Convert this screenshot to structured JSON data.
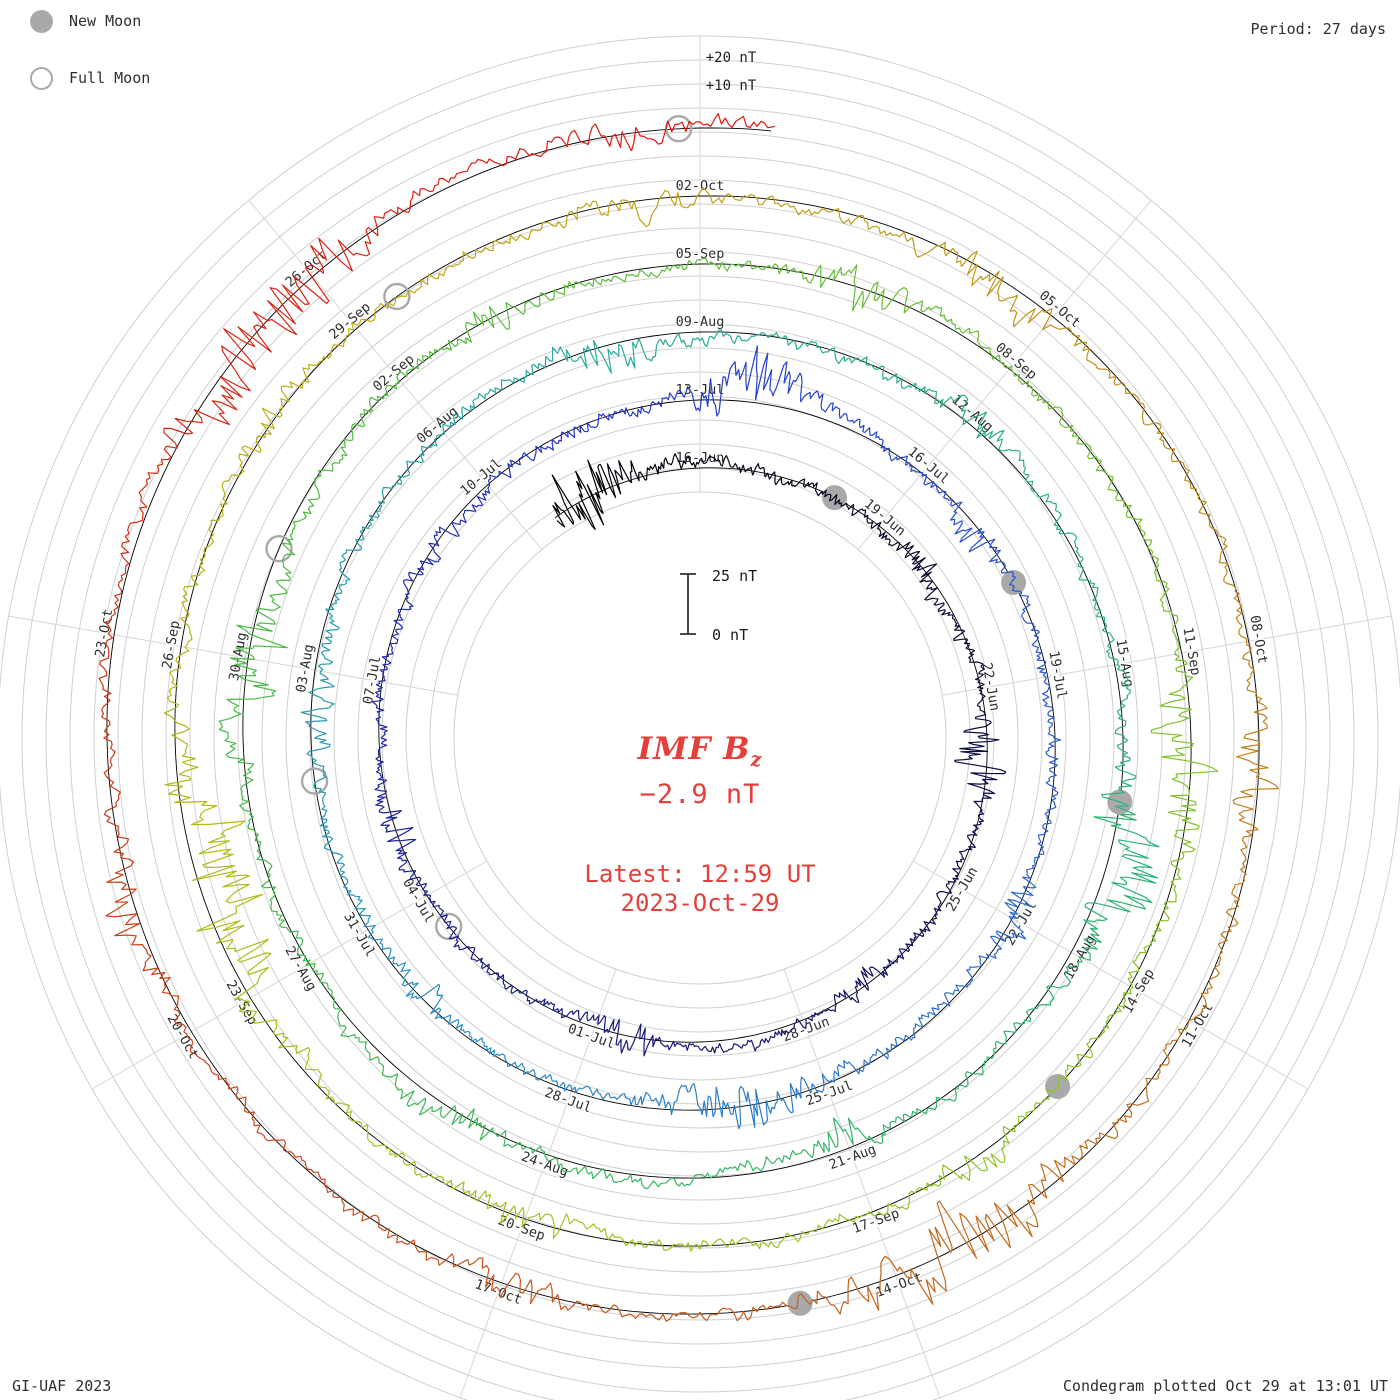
{
  "meta": {
    "credit": "GI-UAF 2023",
    "plotted_note": "Condegram plotted Oct 29 at 13:01 UT",
    "period_label": "Period: 27 days"
  },
  "legend": {
    "new_moon_label": "New Moon",
    "full_moon_label": "Full Moon"
  },
  "center": {
    "title_main": "IMF B",
    "title_sub": "z",
    "current_value": "−2.9 nT",
    "latest_line1": "Latest: 12:59 UT",
    "latest_line2": "2023-Oct-29"
  },
  "scale": {
    "outer_label_plus20": "+20 nT",
    "outer_label_plus10": "+10 nT",
    "bar_top_label": "25 nT",
    "bar_bottom_label": "0 nT"
  },
  "colors": {
    "background": "#ffffff",
    "grid": "#cfcfcf",
    "spoke": "#d6d6d6",
    "baseline": "#000000",
    "date_label": "#2e2e2e",
    "moon": "#a9a9a9",
    "accent_red": "#e2403a",
    "corner_text": "#2e2e2e",
    "trace_gradient": [
      [
        0.0,
        "#000000"
      ],
      [
        0.05,
        "#0a0a30"
      ],
      [
        0.12,
        "#17177a"
      ],
      [
        0.2,
        "#2433c8"
      ],
      [
        0.27,
        "#2f62d2"
      ],
      [
        0.33,
        "#2b8cc4"
      ],
      [
        0.4,
        "#26ab9b"
      ],
      [
        0.47,
        "#2eb376"
      ],
      [
        0.53,
        "#3eb754"
      ],
      [
        0.6,
        "#5cbc38"
      ],
      [
        0.66,
        "#83c228"
      ],
      [
        0.72,
        "#a6c31c"
      ],
      [
        0.78,
        "#bfad12"
      ],
      [
        0.84,
        "#c08a18"
      ],
      [
        0.9,
        "#c35c1d"
      ],
      [
        0.95,
        "#cd3416"
      ],
      [
        1.0,
        "#e41212"
      ]
    ]
  },
  "chart_data": {
    "type": "line",
    "subtype": "condegram (polar spiral time series, one turn = one solar rotation)",
    "title": "IMF Bz",
    "units": "nT",
    "rotation_period_days": 27,
    "time_start": "2023-06-13T12:00",
    "time_end": "2023-10-29T13:00",
    "latest_value_nT": -2.9,
    "latest_time": "2023-10-29T12:59",
    "value_range_nT": [
      -25,
      25
    ],
    "radial_gridline_spacing_nT": 10,
    "scale_bar_span_nT": 25,
    "date_label_interval_days": 3,
    "top_of_circle_dates": [
      "16-Jun",
      "13-Jul",
      "09-Aug",
      "05-Sep",
      "02-Oct"
    ],
    "date_labels": [
      "16-Jun",
      "19-Jun",
      "22-Jun",
      "25-Jun",
      "28-Jun",
      "01-Jul",
      "04-Jul",
      "07-Jul",
      "10-Jul",
      "13-Jul",
      "16-Jul",
      "19-Jul",
      "22-Jul",
      "25-Jul",
      "28-Jul",
      "31-Jul",
      "03-Aug",
      "06-Aug",
      "09-Aug",
      "12-Aug",
      "15-Aug",
      "18-Aug",
      "21-Aug",
      "24-Aug",
      "27-Aug",
      "30-Aug",
      "02-Sep",
      "05-Sep",
      "08-Sep",
      "11-Sep",
      "14-Sep",
      "17-Sep",
      "20-Sep",
      "23-Sep",
      "26-Sep",
      "29-Sep",
      "02-Oct",
      "05-Oct",
      "08-Oct",
      "11-Oct",
      "14-Oct",
      "17-Oct",
      "20-Oct",
      "23-Oct",
      "26-Oct"
    ],
    "new_moons": [
      "2023-06-18T04:37",
      "2023-07-17T18:32",
      "2023-08-16T09:38",
      "2023-09-15T01:40",
      "2023-10-14T17:55"
    ],
    "full_moons": [
      "2023-07-03T11:39",
      "2023-08-01T18:31",
      "2023-08-31T01:35",
      "2023-09-29T09:57",
      "2023-10-28T20:24"
    ]
  }
}
